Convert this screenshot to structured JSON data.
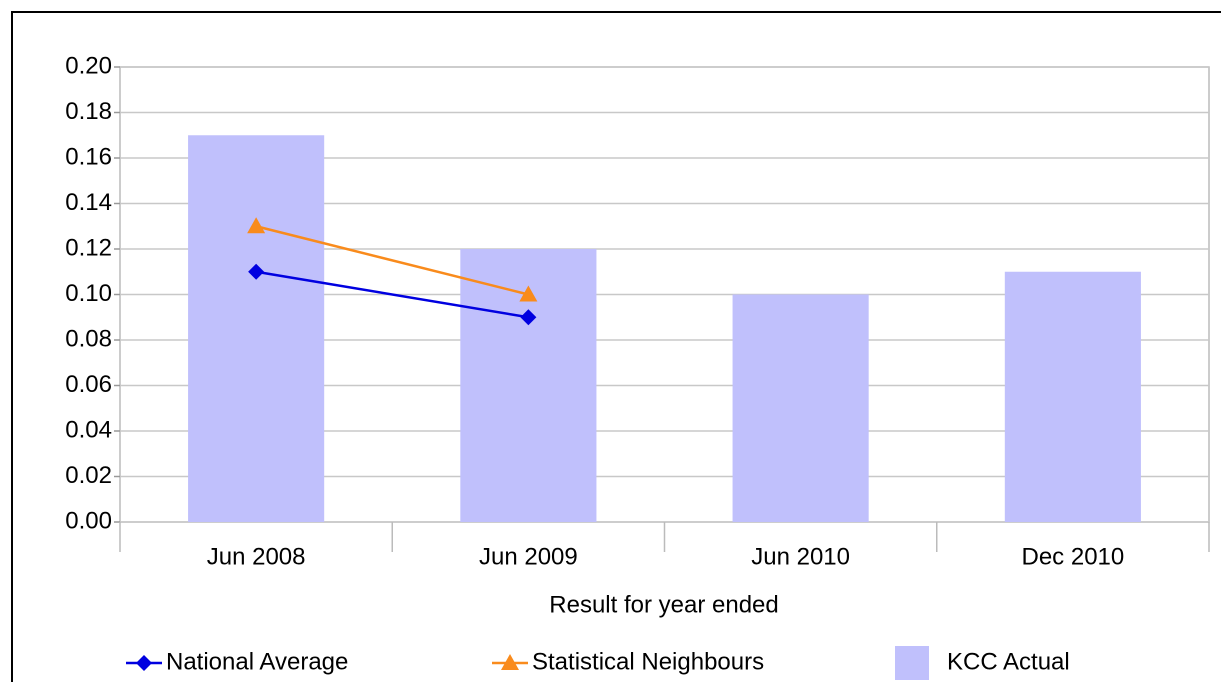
{
  "chart_data": {
    "type": "bar",
    "x_label": "Result for year ended",
    "categories": [
      "Jun 2008",
      "Jun 2009",
      "Jun 2010",
      "Dec 2010"
    ],
    "series": [
      {
        "name": "National Average",
        "type": "line",
        "marker": "diamond",
        "color": "#0000e0",
        "values": [
          0.11,
          0.09,
          null,
          null
        ]
      },
      {
        "name": "Statistical Neighbours",
        "type": "line",
        "marker": "triangle",
        "color": "#f98b1c",
        "values": [
          0.13,
          0.1,
          null,
          null
        ]
      },
      {
        "name": "KCC Actual",
        "type": "bar",
        "color": "#c0c0fc",
        "values": [
          0.17,
          0.12,
          0.1,
          0.11
        ]
      }
    ],
    "ylim": [
      0,
      0.2
    ],
    "yticks": [
      {
        "value": 0,
        "label": "0.00"
      },
      {
        "value": 0.02,
        "label": "0.02"
      },
      {
        "value": 0.04,
        "label": "0.04"
      },
      {
        "value": 0.06,
        "label": "0.06"
      },
      {
        "value": 0.08,
        "label": "0.08"
      },
      {
        "value": 0.1,
        "label": "0.10"
      },
      {
        "value": 0.12,
        "label": "0.12"
      },
      {
        "value": 0.14,
        "label": "0.14"
      },
      {
        "value": 0.16,
        "label": "0.16"
      },
      {
        "value": 0.18,
        "label": "0.18"
      },
      {
        "value": 0.2,
        "label": "0.20"
      }
    ],
    "grid": true,
    "legend": "bottom"
  }
}
